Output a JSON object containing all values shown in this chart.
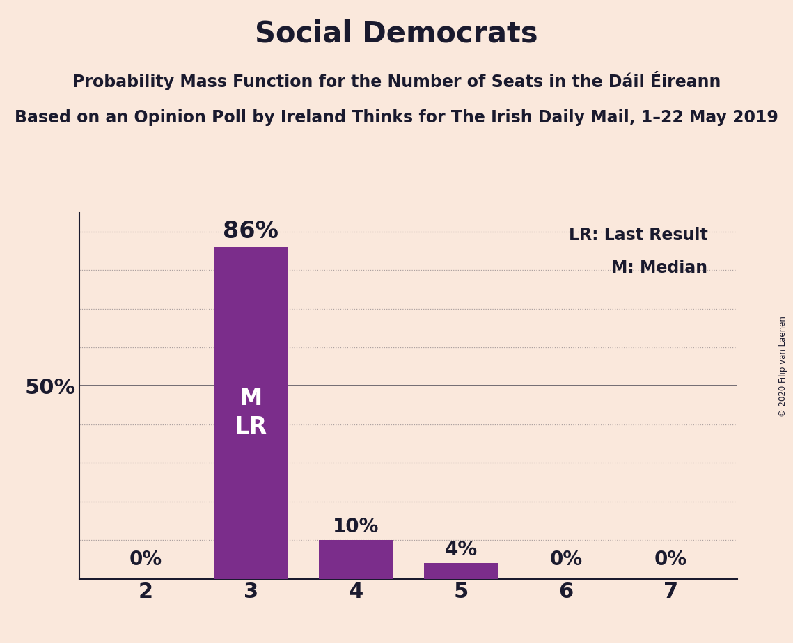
{
  "title": "Social Democrats",
  "subtitle1": "Probability Mass Function for the Number of Seats in the Dáil Éireann",
  "subtitle2": "Based on an Opinion Poll by Ireland Thinks for The Irish Daily Mail, 1–22 May 2019",
  "copyright": "© 2020 Filip van Laenen",
  "categories": [
    2,
    3,
    4,
    5,
    6,
    7
  ],
  "values": [
    0,
    86,
    10,
    4,
    0,
    0
  ],
  "bar_color": "#7B2D8B",
  "background_color": "#FAE8DC",
  "text_color": "#1A1A2E",
  "bar_label_color_dark": "#1A1A2E",
  "bar_label_color_light": "#F5E6DC",
  "median_bar": 3,
  "last_result_bar": 3,
  "legend_lr": "LR: Last Result",
  "legend_m": "M: Median",
  "ylim": [
    0,
    95
  ],
  "dotted_gridlines": [
    10,
    20,
    30,
    40,
    60,
    70,
    80,
    90
  ],
  "solid_gridline": 50,
  "grid_color": "#1A1A2E",
  "grid_alpha": 0.35,
  "bar_width": 0.7
}
